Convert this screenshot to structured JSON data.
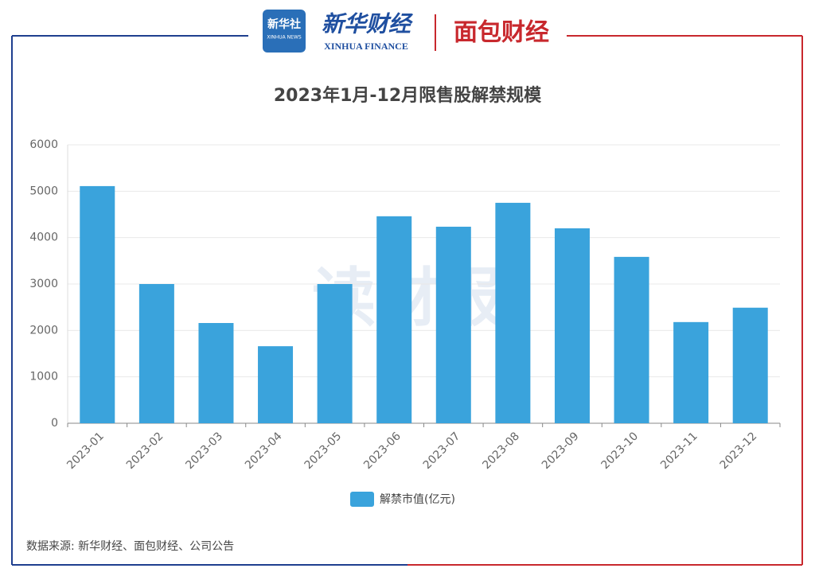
{
  "header": {
    "logo1": "新华社",
    "logo1_sub": "XINHUA NEWS",
    "logo2": "新华财经",
    "logo2_sub": "XINHUA FINANCE",
    "logo3": "面包财经"
  },
  "chart_data": {
    "type": "bar",
    "title": "2023年1月-12月限售股解禁规模",
    "categories": [
      "2023-01",
      "2023-02",
      "2023-03",
      "2023-04",
      "2023-05",
      "2023-06",
      "2023-07",
      "2023-08",
      "2023-09",
      "2023-10",
      "2023-11",
      "2023-12"
    ],
    "series": [
      {
        "name": "解禁市值(亿元)",
        "color": "#3aa3dc",
        "values": [
          5110,
          3000,
          2160,
          1660,
          3000,
          4460,
          4235,
          4750,
          4200,
          3585,
          2180,
          2490
        ]
      }
    ],
    "ylim": [
      0,
      6000
    ],
    "yticks": [
      0,
      1000,
      2000,
      3000,
      4000,
      5000,
      6000
    ],
    "grid": true,
    "legend": "bottom",
    "watermark": "读财报",
    "source": "数据来源: 新华财经、面包财经、公司公告"
  }
}
